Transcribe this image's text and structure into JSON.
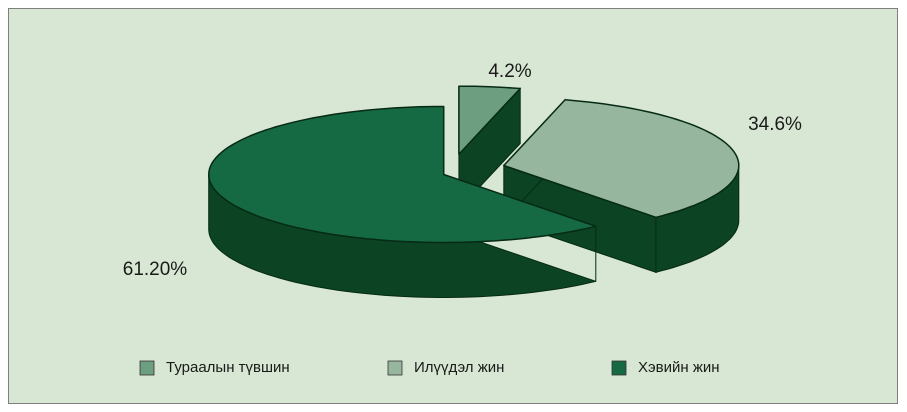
{
  "chart_data": {
    "type": "pie3d",
    "categories": [
      "Тураалын түвшин",
      "Илүүдэл жин",
      "Хэвийн жин"
    ],
    "values": [
      4.2,
      34.6,
      61.2
    ],
    "value_labels": [
      "4.2%",
      "34.6%",
      "61.20%"
    ],
    "colors": [
      "#6e9e80",
      "#96b79e",
      "#156a44"
    ],
    "legend": "bottom"
  }
}
